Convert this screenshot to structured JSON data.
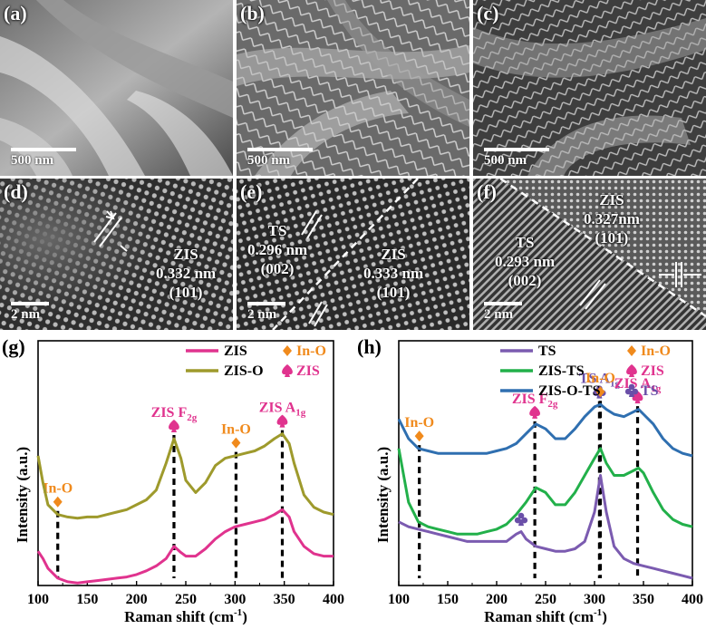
{
  "figure": {
    "sem_panels": [
      {
        "label": "(a)",
        "scale": "500 nm"
      },
      {
        "label": "(b)",
        "scale": "500 nm"
      },
      {
        "label": "(c)",
        "scale": "500 nm"
      }
    ],
    "tem_panels": [
      {
        "label": "(d)",
        "scale": "2 nm",
        "notes": [
          "ZIS",
          "0.332 nm",
          "(101)"
        ]
      },
      {
        "label": "(e)",
        "scale": "2 nm",
        "notes_left": [
          "TS",
          "0.296 nm",
          "(002)"
        ],
        "notes_right": [
          "ZIS",
          "0.333 nm",
          "(101)"
        ]
      },
      {
        "label": "(f)",
        "scale": "2 nm",
        "notes_left": [
          "TS",
          "0.293 nm",
          "(002)"
        ],
        "notes_right": [
          "ZIS",
          "0.327nm",
          "(101)"
        ]
      }
    ]
  },
  "colors": {
    "ZIS": "#e0338e",
    "ZIS-O": "#9e9a2c",
    "TS": "#7b5bb0",
    "ZIS-TS": "#22b04a",
    "ZIS-O-TS": "#2f6fb0",
    "In-O": "#f08a1c",
    "ZIS_marker": "#e0338e",
    "TS_marker": "#6a4fa8"
  },
  "chart_data": [
    {
      "panel": "(g)",
      "type": "line",
      "xlabel": "Raman shift (cm",
      "xlabel_sup": "-1",
      "xlabel_end": ")",
      "ylabel": "Intensity (a.u.)",
      "xlim": [
        100,
        400
      ],
      "ylim": [
        0,
        1
      ],
      "xticks": [
        100,
        150,
        200,
        250,
        300,
        350,
        400
      ],
      "grid": false,
      "legend": {
        "position": "top-right",
        "entries": [
          "ZIS",
          "ZIS-O"
        ],
        "markers": [
          "In-O",
          "ZIS"
        ]
      },
      "series": [
        {
          "name": "ZIS",
          "color": "#e0338e",
          "x": [
            100,
            105,
            110,
            120,
            130,
            140,
            150,
            160,
            170,
            180,
            190,
            200,
            210,
            220,
            230,
            238,
            245,
            250,
            260,
            270,
            280,
            290,
            300,
            310,
            320,
            330,
            340,
            348,
            355,
            360,
            370,
            380,
            390,
            400
          ],
          "y": [
            0.14,
            0.11,
            0.07,
            0.03,
            0.015,
            0.01,
            0.015,
            0.02,
            0.025,
            0.03,
            0.035,
            0.045,
            0.06,
            0.08,
            0.11,
            0.16,
            0.135,
            0.12,
            0.12,
            0.15,
            0.19,
            0.22,
            0.24,
            0.25,
            0.26,
            0.27,
            0.29,
            0.31,
            0.28,
            0.22,
            0.16,
            0.13,
            0.12,
            0.12
          ]
        },
        {
          "name": "ZIS-O",
          "color": "#9e9a2c",
          "x": [
            100,
            105,
            110,
            120,
            130,
            140,
            150,
            160,
            170,
            180,
            190,
            200,
            210,
            220,
            230,
            238,
            245,
            250,
            260,
            270,
            280,
            290,
            300,
            310,
            320,
            330,
            340,
            348,
            355,
            360,
            370,
            380,
            390,
            400
          ],
          "y": [
            0.53,
            0.42,
            0.33,
            0.29,
            0.28,
            0.275,
            0.28,
            0.28,
            0.29,
            0.3,
            0.31,
            0.33,
            0.35,
            0.39,
            0.5,
            0.6,
            0.52,
            0.43,
            0.38,
            0.42,
            0.49,
            0.52,
            0.53,
            0.54,
            0.55,
            0.57,
            0.6,
            0.62,
            0.58,
            0.5,
            0.37,
            0.32,
            0.3,
            0.29
          ]
        }
      ],
      "annotations": [
        {
          "text": "In-O",
          "x": 120,
          "marker": "In-O"
        },
        {
          "text": "ZIS F",
          "sub": "2g",
          "x": 238,
          "marker": "ZIS"
        },
        {
          "text": "In-O",
          "x": 301,
          "marker": "In-O"
        },
        {
          "text": "ZIS A",
          "sub": "1g",
          "x": 348,
          "marker": "ZIS"
        }
      ]
    },
    {
      "panel": "(h)",
      "type": "line",
      "xlabel": "Raman shift (cm",
      "xlabel_sup": "-1",
      "xlabel_end": ")",
      "ylabel": "Intensity (a.u.)",
      "xlim": [
        100,
        400
      ],
      "ylim": [
        0,
        1
      ],
      "xticks": [
        100,
        150,
        200,
        250,
        300,
        350,
        400
      ],
      "grid": false,
      "legend": {
        "position": "top-right",
        "entries": [
          "TS",
          "ZIS-TS",
          "ZIS-O-TS"
        ],
        "markers": [
          "In-O",
          "ZIS",
          "TS"
        ]
      },
      "series": [
        {
          "name": "TS",
          "color": "#7b5bb0",
          "x": [
            100,
            110,
            120,
            130,
            140,
            150,
            160,
            170,
            180,
            190,
            200,
            210,
            220,
            225,
            230,
            240,
            250,
            260,
            270,
            280,
            290,
            300,
            306,
            312,
            320,
            330,
            340,
            350,
            360,
            370,
            380,
            390,
            400
          ],
          "y": [
            0.26,
            0.24,
            0.23,
            0.22,
            0.21,
            0.2,
            0.19,
            0.18,
            0.18,
            0.18,
            0.18,
            0.18,
            0.21,
            0.22,
            0.19,
            0.16,
            0.15,
            0.14,
            0.14,
            0.15,
            0.18,
            0.3,
            0.45,
            0.3,
            0.16,
            0.11,
            0.09,
            0.08,
            0.07,
            0.06,
            0.05,
            0.04,
            0.03
          ]
        },
        {
          "name": "ZIS-TS",
          "color": "#22b04a",
          "x": [
            100,
            105,
            110,
            120,
            130,
            140,
            150,
            160,
            170,
            180,
            190,
            200,
            210,
            220,
            230,
            240,
            250,
            260,
            270,
            280,
            290,
            300,
            306,
            312,
            320,
            330,
            340,
            345,
            350,
            360,
            370,
            380,
            390,
            400
          ],
          "y": [
            0.56,
            0.45,
            0.34,
            0.26,
            0.24,
            0.23,
            0.22,
            0.21,
            0.21,
            0.21,
            0.22,
            0.23,
            0.25,
            0.29,
            0.34,
            0.4,
            0.38,
            0.33,
            0.33,
            0.38,
            0.45,
            0.52,
            0.56,
            0.5,
            0.45,
            0.45,
            0.47,
            0.48,
            0.46,
            0.38,
            0.31,
            0.27,
            0.25,
            0.24
          ]
        },
        {
          "name": "ZIS-O-TS",
          "color": "#2f6fb0",
          "x": [
            100,
            110,
            120,
            130,
            140,
            150,
            160,
            170,
            180,
            190,
            200,
            210,
            220,
            230,
            240,
            250,
            260,
            270,
            280,
            290,
            300,
            306,
            312,
            320,
            330,
            340,
            345,
            350,
            360,
            370,
            380,
            390,
            400
          ],
          "y": [
            0.68,
            0.6,
            0.56,
            0.55,
            0.54,
            0.54,
            0.54,
            0.54,
            0.54,
            0.54,
            0.55,
            0.56,
            0.58,
            0.62,
            0.66,
            0.64,
            0.6,
            0.6,
            0.64,
            0.69,
            0.73,
            0.74,
            0.72,
            0.7,
            0.69,
            0.71,
            0.72,
            0.7,
            0.66,
            0.6,
            0.56,
            0.54,
            0.53
          ]
        }
      ],
      "annotations": [
        {
          "text": "In-O",
          "x": 121,
          "marker": "In-O"
        },
        {
          "text": "ZIS F",
          "sub": "2g",
          "x": 239,
          "marker": "ZIS"
        },
        {
          "text": "TS A",
          "sub": "1g",
          "x": 305,
          "marker": "TS"
        },
        {
          "text": "In-O",
          "x": 306,
          "marker": "In-O"
        },
        {
          "text": "ZIS A",
          "sub": "1g",
          "x": 344,
          "marker": "ZIS"
        }
      ]
    }
  ]
}
